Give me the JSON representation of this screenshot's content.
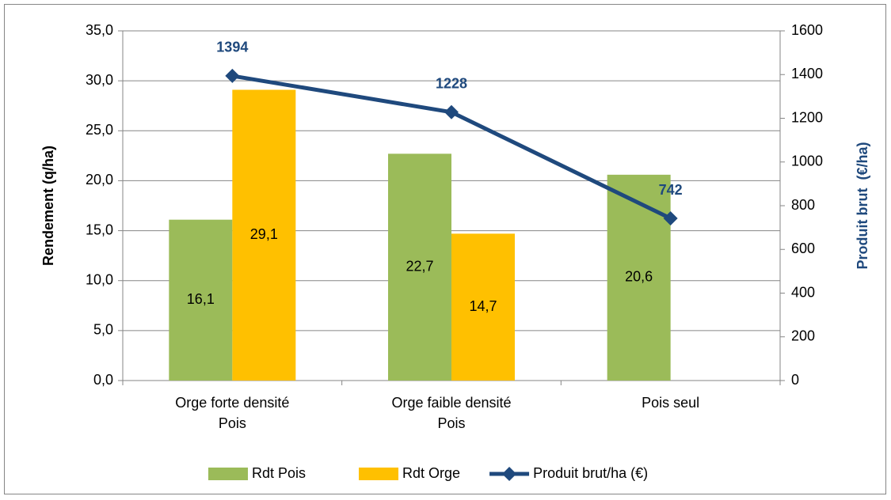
{
  "chart_data": {
    "type": "bar",
    "categories": [
      [
        "Orge forte densité",
        "Pois"
      ],
      [
        "Orge faible densité",
        "Pois"
      ],
      [
        "Pois seul"
      ]
    ],
    "series": [
      {
        "name": "Rdt Pois",
        "type": "bar",
        "color": "#9bbb59",
        "values": [
          16.1,
          22.7,
          20.6
        ],
        "value_labels": [
          "16,1",
          "22,7",
          "20,6"
        ]
      },
      {
        "name": "Rdt Orge",
        "type": "bar",
        "color": "#ffc000",
        "values": [
          29.1,
          14.7,
          null
        ],
        "value_labels": [
          "29,1",
          "14,7",
          null
        ]
      },
      {
        "name": "Produit brut/ha (€)",
        "type": "line",
        "axis": "y2",
        "color": "#1f497d",
        "values": [
          1394,
          1228,
          742
        ]
      }
    ],
    "y_label": "Rendement (q/ha)",
    "y2_label": "Produit brut  (€/ha)",
    "ylim": [
      0,
      35
    ],
    "yticks": [
      {
        "value": 0,
        "label": "0,0"
      },
      {
        "value": 5,
        "label": "5,0"
      },
      {
        "value": 10,
        "label": "10,0"
      },
      {
        "value": 15,
        "label": "15,0"
      },
      {
        "value": 20,
        "label": "20,0"
      },
      {
        "value": 25,
        "label": "25,0"
      },
      {
        "value": 30,
        "label": "30,0"
      },
      {
        "value": 35,
        "label": "35,0"
      }
    ],
    "y2lim": [
      0,
      1600
    ],
    "y2ticks": [
      0,
      200,
      400,
      600,
      800,
      1000,
      1200,
      1400,
      1600
    ],
    "grid": true,
    "legend": "bottom"
  }
}
